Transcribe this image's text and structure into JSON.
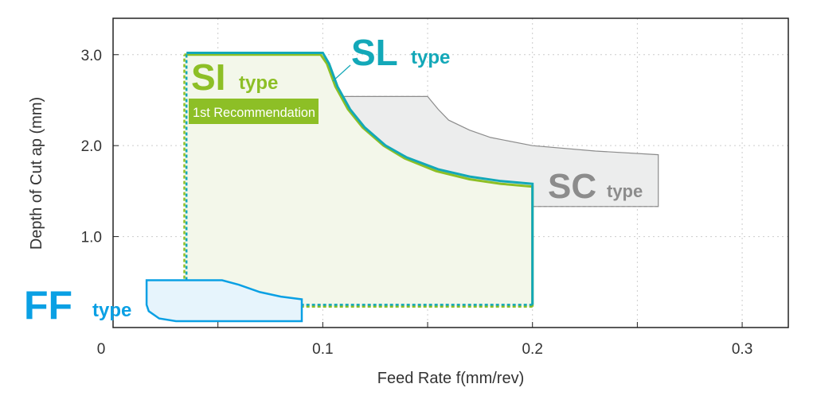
{
  "chart_data": {
    "type": "area",
    "title": "",
    "xlabel": "Feed Rate  f(mm/rev)",
    "ylabel": "Depth of Cut ap (mm)",
    "xlim": [
      0,
      0.322
    ],
    "ylim": [
      0,
      3.4
    ],
    "grid": true,
    "x_ticks": [
      {
        "v": 0,
        "label": "0"
      },
      {
        "v": 0.1,
        "label": "0.1"
      },
      {
        "v": 0.2,
        "label": "0.2"
      },
      {
        "v": 0.3,
        "label": "0.3"
      }
    ],
    "x_minor": [
      0.05,
      0.15,
      0.25
    ],
    "y_ticks": [
      {
        "v": 1,
        "label": "1.0"
      },
      {
        "v": 2,
        "label": "2.0"
      },
      {
        "v": 3,
        "label": "3.0"
      }
    ],
    "colors": {
      "SL": "#13a8b8",
      "SI": "#8dbf26",
      "SC": "#8c8c8c",
      "FF": "#0aa0e4"
    },
    "series": [
      {
        "name": "SC",
        "label": "SC",
        "suffix": "type",
        "color": "#8c8c8c",
        "fill": "#eceded",
        "points": [
          [
            0.076,
            2.54
          ],
          [
            0.15,
            2.54
          ],
          [
            0.155,
            2.4
          ],
          [
            0.16,
            2.28
          ],
          [
            0.17,
            2.17
          ],
          [
            0.18,
            2.09
          ],
          [
            0.2,
            2.0
          ],
          [
            0.23,
            1.94
          ],
          [
            0.26,
            1.9
          ],
          [
            0.26,
            1.33
          ],
          [
            0.085,
            1.33
          ],
          [
            0.078,
            1.38
          ],
          [
            0.076,
            1.45
          ]
        ]
      },
      {
        "name": "SI",
        "label": "SI",
        "suffix": "type",
        "note": "1st Recommendation",
        "color": "#8dbf26",
        "fill": "#f3f7ea",
        "points": [
          [
            0.034,
            3.0
          ],
          [
            0.099,
            3.0
          ],
          [
            0.102,
            2.9
          ],
          [
            0.106,
            2.65
          ],
          [
            0.112,
            2.4
          ],
          [
            0.119,
            2.2
          ],
          [
            0.129,
            2.0
          ],
          [
            0.139,
            1.86
          ],
          [
            0.154,
            1.72
          ],
          [
            0.17,
            1.63
          ],
          [
            0.185,
            1.58
          ],
          [
            0.2,
            1.55
          ],
          [
            0.2,
            0.23
          ],
          [
            0.042,
            0.23
          ],
          [
            0.036,
            0.3
          ],
          [
            0.034,
            0.4
          ]
        ]
      },
      {
        "name": "SL",
        "label": "SL",
        "suffix": "type",
        "color": "#13a8b8",
        "fill": "none",
        "points": [
          [
            0.035,
            3.02
          ],
          [
            0.1,
            3.02
          ],
          [
            0.103,
            2.9
          ],
          [
            0.107,
            2.65
          ],
          [
            0.113,
            2.4
          ],
          [
            0.12,
            2.2
          ],
          [
            0.13,
            2.0
          ],
          [
            0.14,
            1.87
          ],
          [
            0.155,
            1.74
          ],
          [
            0.17,
            1.66
          ],
          [
            0.185,
            1.61
          ],
          [
            0.2,
            1.58
          ],
          [
            0.2,
            0.25
          ],
          [
            0.043,
            0.25
          ],
          [
            0.037,
            0.32
          ],
          [
            0.035,
            0.45
          ]
        ]
      },
      {
        "name": "FF",
        "label": "FF",
        "suffix": "type",
        "color": "#0aa0e4",
        "fill": "#e6f4fc",
        "points": [
          [
            0.016,
            0.52
          ],
          [
            0.052,
            0.52
          ],
          [
            0.06,
            0.47
          ],
          [
            0.07,
            0.39
          ],
          [
            0.08,
            0.34
          ],
          [
            0.09,
            0.31
          ],
          [
            0.09,
            0.07
          ],
          [
            0.03,
            0.07
          ],
          [
            0.022,
            0.1
          ],
          [
            0.017,
            0.18
          ],
          [
            0.016,
            0.25
          ]
        ]
      }
    ]
  }
}
